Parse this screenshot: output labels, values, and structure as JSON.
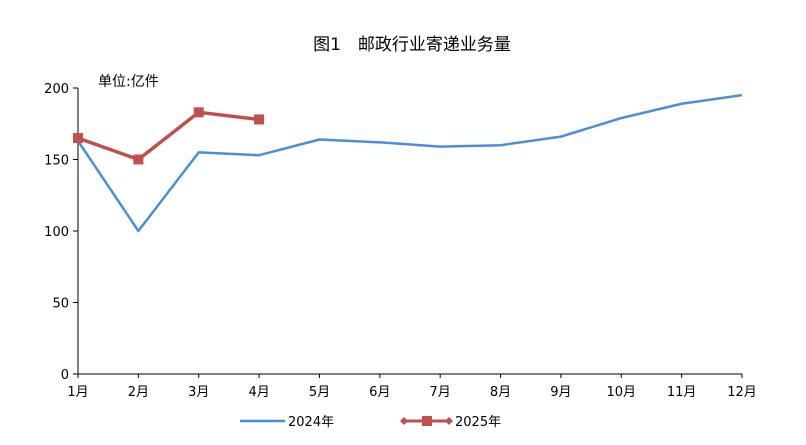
{
  "chart_data": {
    "type": "line",
    "title": "图1　邮政行业寄递业务量",
    "unit_label": "单位:亿件",
    "categories": [
      "1月",
      "2月",
      "3月",
      "4月",
      "5月",
      "6月",
      "7月",
      "8月",
      "9月",
      "10月",
      "11月",
      "12月"
    ],
    "ylim": [
      0,
      200
    ],
    "yticks": [
      0,
      50,
      100,
      150,
      200
    ],
    "grid": false,
    "legend_position": "bottom",
    "series": [
      {
        "name": "2024年",
        "color": "#4a90d9",
        "marker": "none",
        "values": [
          163,
          100,
          155,
          153,
          164,
          162,
          159,
          160,
          166,
          179,
          189,
          195
        ]
      },
      {
        "name": "2025年",
        "color": "#c0504d",
        "marker": "square",
        "values": [
          165,
          150,
          183,
          178,
          null,
          null,
          null,
          null,
          null,
          null,
          null,
          null
        ]
      }
    ]
  }
}
